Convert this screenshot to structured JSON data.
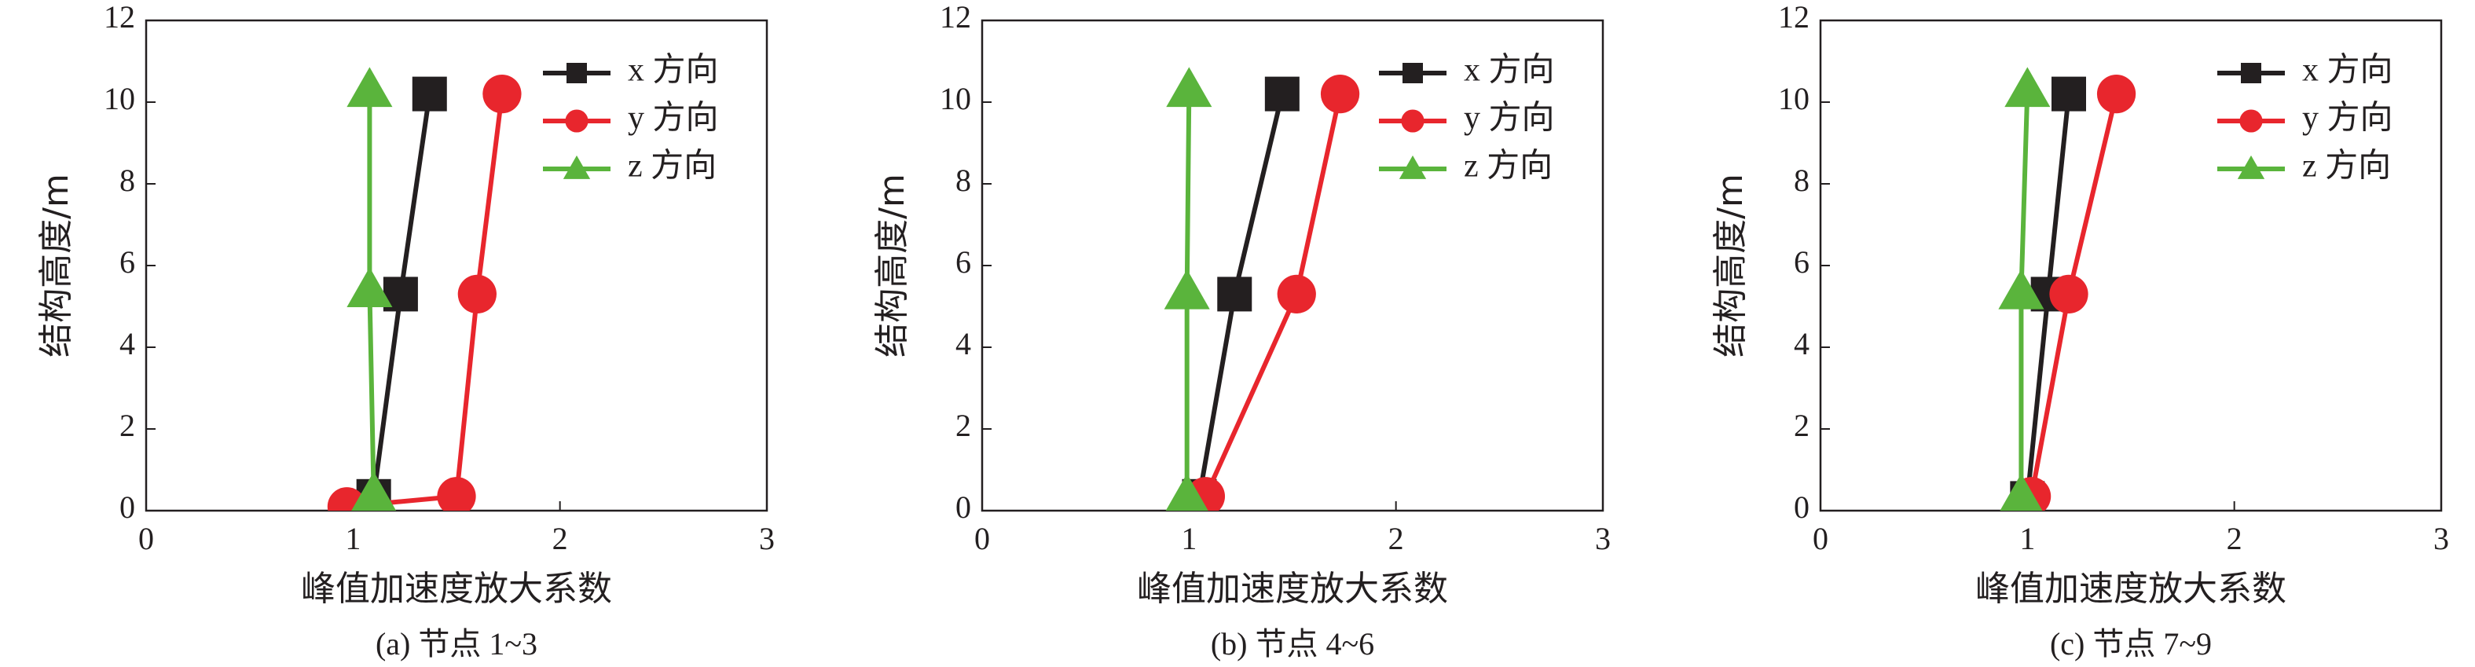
{
  "chart_data": [
    {
      "type": "line",
      "caption": "(a) 节点 1~3",
      "xlabel": "峰值加速度放大系数",
      "ylabel": "结构高度/m",
      "xlim": [
        0,
        3
      ],
      "ylim": [
        0,
        12
      ],
      "xticks": [
        0,
        1,
        2,
        3
      ],
      "yticks": [
        0,
        2,
        4,
        6,
        8,
        10,
        12
      ],
      "series": [
        {
          "name": "x 方向",
          "color": "#231f20",
          "marker": "square",
          "x": [
            1.1,
            1.23,
            1.37
          ],
          "values": [
            0.35,
            5.3,
            10.2
          ]
        },
        {
          "name": "y 方向",
          "color": "#e8262d",
          "marker": "circle",
          "x": [
            0.97,
            1.5,
            1.6,
            1.72
          ],
          "values": [
            0.1,
            0.35,
            5.3,
            10.2
          ]
        },
        {
          "name": "z 方向",
          "color": "#5ab43c",
          "marker": "triangle",
          "x": [
            1.1,
            1.08,
            1.08
          ],
          "values": [
            0.4,
            5.4,
            10.3
          ]
        }
      ]
    },
    {
      "type": "line",
      "caption": "(b) 节点 4~6",
      "xlabel": "峰值加速度放大系数",
      "ylabel": "结构高度/m",
      "xlim": [
        0,
        3
      ],
      "ylim": [
        0,
        12
      ],
      "xticks": [
        0,
        1,
        2,
        3
      ],
      "yticks": [
        0,
        2,
        4,
        6,
        8,
        10,
        12
      ],
      "series": [
        {
          "name": "x 方向",
          "color": "#231f20",
          "marker": "square",
          "x": [
            1.05,
            1.22,
            1.45
          ],
          "values": [
            0.35,
            5.3,
            10.2
          ]
        },
        {
          "name": "y 方向",
          "color": "#e8262d",
          "marker": "circle",
          "x": [
            1.08,
            1.52,
            1.73
          ],
          "values": [
            0.35,
            5.3,
            10.2
          ]
        },
        {
          "name": "z 方向",
          "color": "#5ab43c",
          "marker": "triangle",
          "x": [
            0.99,
            0.99,
            1.0
          ],
          "values": [
            0.35,
            5.35,
            10.3
          ]
        }
      ]
    },
    {
      "type": "line",
      "caption": "(c) 节点 7~9",
      "xlabel": "峰值加速度放大系数",
      "ylabel": "结构高度/m",
      "xlim": [
        0,
        3
      ],
      "ylim": [
        0,
        12
      ],
      "xticks": [
        0,
        1,
        2,
        3
      ],
      "yticks": [
        0,
        2,
        4,
        6,
        8,
        10,
        12
      ],
      "series": [
        {
          "name": "x 方向",
          "color": "#231f20",
          "marker": "square",
          "x": [
            1.0,
            1.1,
            1.2
          ],
          "values": [
            0.3,
            5.3,
            10.2
          ]
        },
        {
          "name": "y 方向",
          "color": "#e8262d",
          "marker": "circle",
          "x": [
            1.02,
            1.2,
            1.43
          ],
          "values": [
            0.35,
            5.3,
            10.2
          ]
        },
        {
          "name": "z 方向",
          "color": "#5ab43c",
          "marker": "triangle",
          "x": [
            0.97,
            0.97,
            1.0
          ],
          "values": [
            0.35,
            5.35,
            10.3
          ]
        }
      ]
    }
  ]
}
